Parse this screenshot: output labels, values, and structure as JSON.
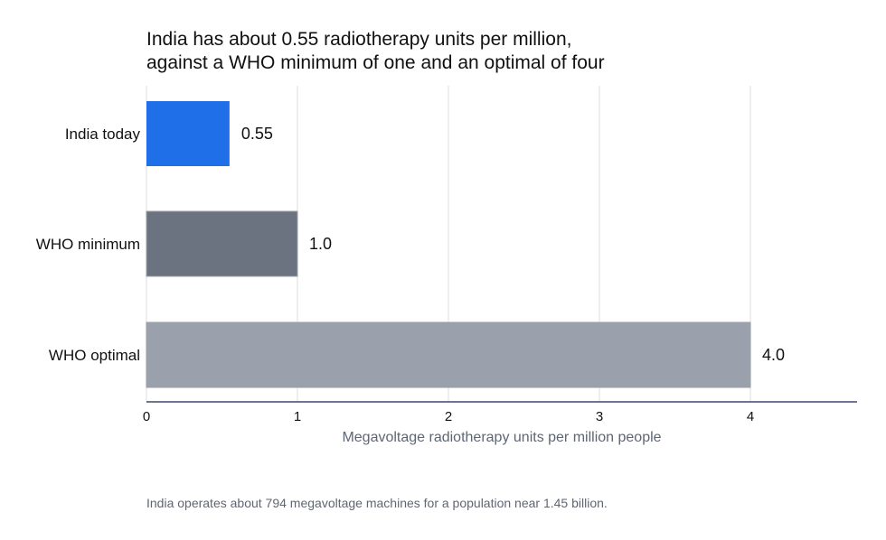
{
  "chart_data": {
    "type": "bar",
    "orientation": "horizontal",
    "title_lines": [
      "India has about 0.55 radiotherapy units per million,",
      "against a WHO minimum of one and an optimal of four"
    ],
    "categories": [
      "India today",
      "WHO minimum",
      "WHO optimal"
    ],
    "values": [
      0.55,
      1.0,
      4.0
    ],
    "value_labels": [
      "0.55",
      "1.0",
      "4.0"
    ],
    "bar_colors": [
      "#1f6fe8",
      "#6b7280",
      "#9aa1ad"
    ],
    "xlabel": "Megavoltage radiotherapy units per million people",
    "xticks": [
      0,
      1,
      2,
      3,
      4
    ],
    "xlim": [
      0,
      4.7
    ],
    "grid": true
  },
  "footnote": "India operates about 794 megavoltage machines for a population near 1.45 billion."
}
